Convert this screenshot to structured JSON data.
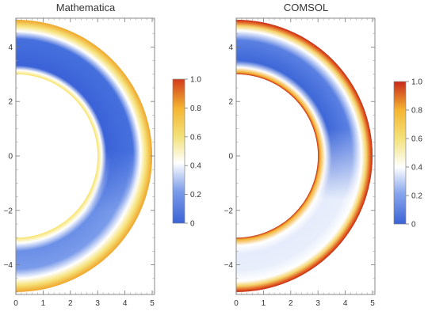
{
  "chart_data": [
    {
      "type": "heatmap",
      "title": "Mathematica",
      "shape": "half-annulus",
      "inner_radius": 3,
      "outer_radius": 5,
      "xlim": [
        0,
        5
      ],
      "ylim": [
        -5,
        5
      ],
      "xticks": [
        0,
        1,
        2,
        3,
        4,
        5
      ],
      "yticks": [
        -4,
        -2,
        0,
        2,
        4
      ],
      "colorbar": {
        "min": 0,
        "max": 1.0,
        "ticks": [
          "0",
          "0.2",
          "0.4",
          "0.6",
          "0.8",
          "1.0"
        ]
      },
      "colors": [
        "#3a63d6",
        "#5a82e4",
        "#ffffff",
        "#f3e27a",
        "#f5b531",
        "#d13b1b"
      ],
      "grid": false
    },
    {
      "type": "heatmap",
      "title": "COMSOL",
      "shape": "half-annulus",
      "inner_radius": 3,
      "outer_radius": 5,
      "xlim": [
        0,
        5
      ],
      "ylim": [
        -5,
        5
      ],
      "xticks": [
        0,
        1,
        2,
        3,
        4,
        5
      ],
      "yticks": [
        -4,
        -2,
        0,
        2,
        4
      ],
      "colorbar": {
        "min": 0,
        "max": 1.0,
        "ticks": [
          "0",
          "0.2",
          "0.4",
          "0.6",
          "0.8",
          "1.0"
        ]
      },
      "colors": [
        "#3a63d6",
        "#6f93ea",
        "#ffffff",
        "#f3e27a",
        "#f5b531",
        "#c8281a"
      ],
      "grid": false
    }
  ]
}
